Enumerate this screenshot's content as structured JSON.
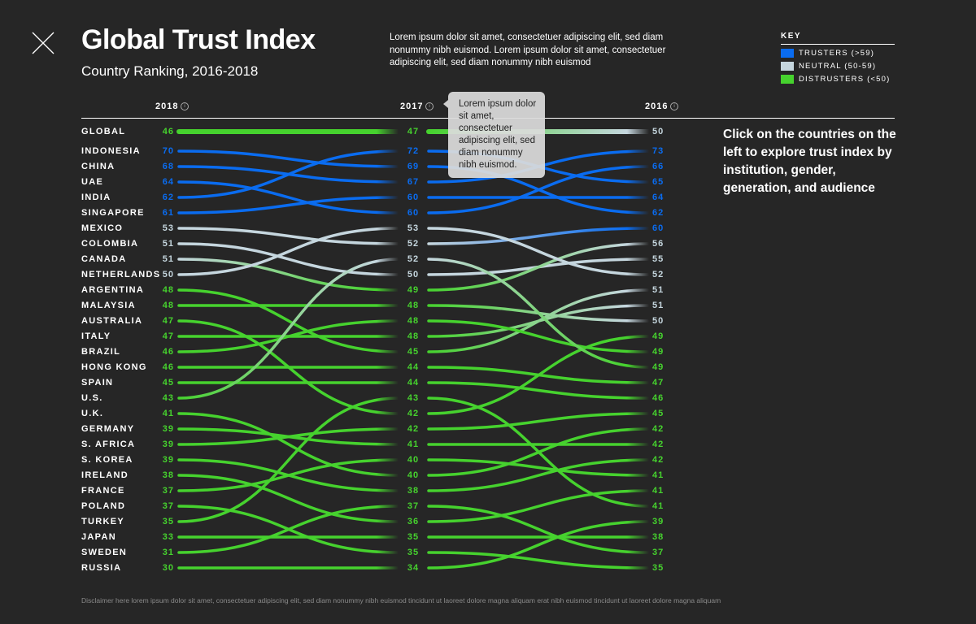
{
  "header": {
    "close_icon": "close-x-icon",
    "title": "Global Trust Index",
    "subtitle": "Country Ranking, 2016-2018",
    "intro": "Lorem ipsum dolor sit amet, consectetuer adipiscing elit, sed diam nonummy nibh euismod. Lorem ipsum dolor sit amet, consectetuer adipiscing elit, sed diam nonummy nibh euismod"
  },
  "key": {
    "title": "KEY",
    "items": [
      {
        "label": "TRUSTERS (>59)",
        "color": "#0a6cf0"
      },
      {
        "label": "NEUTRAL (50-59)",
        "color": "#c5d6de"
      },
      {
        "label": "DISTRUSTERS (<50)",
        "color": "#46d22e"
      }
    ]
  },
  "tooltip": "Lorem ipsum dolor sit amet, consectetuer adipiscing elit, sed diam nonummy nibh euismod.",
  "cta": "Click on the countries on the left to explore trust index by institution, gender, generation, and audience",
  "disclaimer": "Disclaimer here lorem ipsum dolor sit amet, consectetuer adipiscing elit, sed diam nonummy nibh euismod tincidunt ut laoreet dolore magna aliquam erat nibh euismod tincidunt ut laoreet dolore magna aliquam",
  "chart_data": {
    "type": "slope",
    "title": "Global Trust Index",
    "subtitle": "Country Ranking, 2016-2018",
    "columns": [
      "2018",
      "2017",
      "2016"
    ],
    "thresholds": {
      "trusters_min": 60,
      "neutral_min": 50
    },
    "series": [
      {
        "name": "GLOBAL",
        "v2018": 46,
        "v2017": 47,
        "v2016": 50
      },
      {
        "name": "INDONESIA",
        "v2018": 70,
        "v2017": 69,
        "v2016": 62
      },
      {
        "name": "CHINA",
        "v2018": 68,
        "v2017": 67,
        "v2016": 73
      },
      {
        "name": "UAE",
        "v2018": 64,
        "v2017": 60,
        "v2016": 66
      },
      {
        "name": "INDIA",
        "v2018": 62,
        "v2017": 72,
        "v2016": 65
      },
      {
        "name": "SINGAPORE",
        "v2018": 61,
        "v2017": 60,
        "v2016": 64
      },
      {
        "name": "MEXICO",
        "v2018": 53,
        "v2017": 52,
        "v2016": 60
      },
      {
        "name": "COLOMBIA",
        "v2018": 51,
        "v2017": 50,
        "v2016": 55
      },
      {
        "name": "CANADA",
        "v2018": 51,
        "v2017": 49,
        "v2016": 56
      },
      {
        "name": "NETHERLANDS",
        "v2018": 50,
        "v2017": 53,
        "v2016": 52
      },
      {
        "name": "ARGENTINA",
        "v2018": 48,
        "v2017": 45,
        "v2016": 51
      },
      {
        "name": "MALAYSIA",
        "v2018": 48,
        "v2017": 48,
        "v2016": 50
      },
      {
        "name": "AUSTRALIA",
        "v2018": 47,
        "v2017": 42,
        "v2016": 49
      },
      {
        "name": "ITALY",
        "v2018": 47,
        "v2017": 48,
        "v2016": 51
      },
      {
        "name": "BRAZIL",
        "v2018": 46,
        "v2017": 48,
        "v2016": 49
      },
      {
        "name": "HONG KONG",
        "v2018": 46,
        "v2017": 44,
        "v2016": 47
      },
      {
        "name": "SPAIN",
        "v2018": 45,
        "v2017": 44,
        "v2016": 46
      },
      {
        "name": "U.S.",
        "v2018": 43,
        "v2017": 52,
        "v2016": 49
      },
      {
        "name": "U.K.",
        "v2018": 41,
        "v2017": 40,
        "v2016": 42
      },
      {
        "name": "GERMANY",
        "v2018": 39,
        "v2017": 41,
        "v2016": 42
      },
      {
        "name": "S. AFRICA",
        "v2018": 39,
        "v2017": 42,
        "v2016": 45
      },
      {
        "name": "S. KOREA",
        "v2018": 39,
        "v2017": 38,
        "v2016": 42
      },
      {
        "name": "IRELAND",
        "v2018": 38,
        "v2017": 36,
        "v2016": 41
      },
      {
        "name": "FRANCE",
        "v2018": 37,
        "v2017": 40,
        "v2016": 41
      },
      {
        "name": "POLAND",
        "v2018": 37,
        "v2017": 35,
        "v2016": 35
      },
      {
        "name": "TURKEY",
        "v2018": 35,
        "v2017": 43,
        "v2016": 41
      },
      {
        "name": "JAPAN",
        "v2018": 33,
        "v2017": 35,
        "v2016": 38
      },
      {
        "name": "SWEDEN",
        "v2018": 31,
        "v2017": 37,
        "v2016": 37
      },
      {
        "name": "RUSSIA",
        "v2018": 30,
        "v2017": 34,
        "v2016": 39
      }
    ]
  }
}
